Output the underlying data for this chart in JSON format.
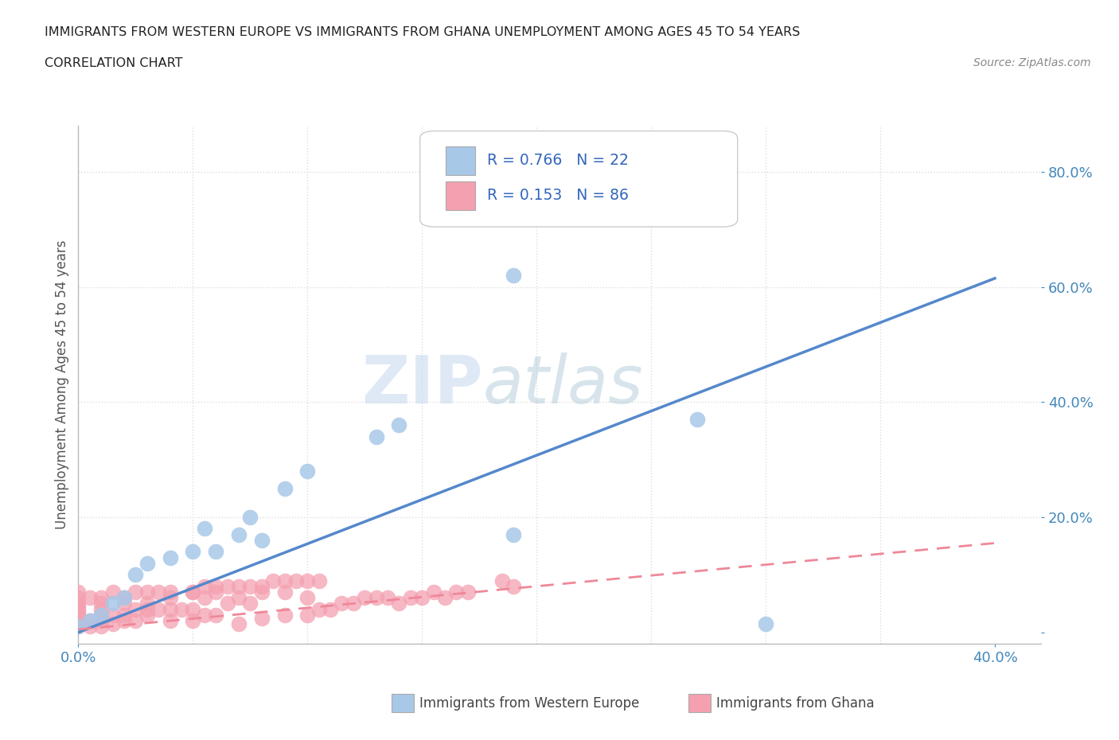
{
  "title_line1": "IMMIGRANTS FROM WESTERN EUROPE VS IMMIGRANTS FROM GHANA UNEMPLOYMENT AMONG AGES 45 TO 54 YEARS",
  "title_line2": "CORRELATION CHART",
  "source_text": "Source: ZipAtlas.com",
  "ylabel": "Unemployment Among Ages 45 to 54 years",
  "xlim": [
    0.0,
    0.42
  ],
  "ylim": [
    -0.02,
    0.88
  ],
  "watermark_zip": "ZIP",
  "watermark_atlas": "atlas",
  "legend_r1": "R = 0.766   N = 22",
  "legend_r2": "R = 0.153   N = 86",
  "color_blue": "#A8C8E8",
  "color_pink": "#F4A0B0",
  "color_blue_line": "#5588CC",
  "color_pink_line": "#EE8899",
  "blue_scatter_x": [
    0.0,
    0.005,
    0.01,
    0.015,
    0.02,
    0.025,
    0.03,
    0.04,
    0.05,
    0.055,
    0.06,
    0.07,
    0.075,
    0.08,
    0.09,
    0.1,
    0.13,
    0.14,
    0.19,
    0.27,
    0.3,
    0.19
  ],
  "blue_scatter_y": [
    0.01,
    0.02,
    0.03,
    0.05,
    0.06,
    0.1,
    0.12,
    0.13,
    0.14,
    0.18,
    0.14,
    0.17,
    0.2,
    0.16,
    0.25,
    0.28,
    0.34,
    0.36,
    0.62,
    0.37,
    0.015,
    0.17
  ],
  "pink_scatter_x": [
    0.0,
    0.0,
    0.0,
    0.0,
    0.0,
    0.0,
    0.0,
    0.0,
    0.0,
    0.005,
    0.005,
    0.01,
    0.01,
    0.01,
    0.01,
    0.01,
    0.015,
    0.015,
    0.02,
    0.02,
    0.02,
    0.025,
    0.025,
    0.03,
    0.03,
    0.03,
    0.035,
    0.04,
    0.04,
    0.04,
    0.045,
    0.05,
    0.05,
    0.05,
    0.055,
    0.055,
    0.06,
    0.06,
    0.065,
    0.07,
    0.07,
    0.075,
    0.08,
    0.08,
    0.09,
    0.09,
    0.1,
    0.1,
    0.105,
    0.11,
    0.115,
    0.12,
    0.125,
    0.13,
    0.135,
    0.14,
    0.145,
    0.15,
    0.155,
    0.16,
    0.165,
    0.17,
    0.0,
    0.0,
    0.005,
    0.01,
    0.015,
    0.02,
    0.025,
    0.03,
    0.035,
    0.04,
    0.05,
    0.055,
    0.06,
    0.065,
    0.07,
    0.075,
    0.08,
    0.085,
    0.09,
    0.095,
    0.1,
    0.105,
    0.19,
    0.185
  ],
  "pink_scatter_y": [
    0.01,
    0.015,
    0.02,
    0.025,
    0.03,
    0.035,
    0.04,
    0.045,
    0.05,
    0.01,
    0.02,
    0.01,
    0.02,
    0.03,
    0.04,
    0.05,
    0.015,
    0.03,
    0.02,
    0.03,
    0.05,
    0.02,
    0.04,
    0.03,
    0.04,
    0.05,
    0.04,
    0.02,
    0.04,
    0.06,
    0.04,
    0.02,
    0.04,
    0.07,
    0.03,
    0.06,
    0.03,
    0.07,
    0.05,
    0.015,
    0.06,
    0.05,
    0.025,
    0.07,
    0.03,
    0.07,
    0.03,
    0.06,
    0.04,
    0.04,
    0.05,
    0.05,
    0.06,
    0.06,
    0.06,
    0.05,
    0.06,
    0.06,
    0.07,
    0.06,
    0.07,
    0.07,
    0.06,
    0.07,
    0.06,
    0.06,
    0.07,
    0.06,
    0.07,
    0.07,
    0.07,
    0.07,
    0.07,
    0.08,
    0.08,
    0.08,
    0.08,
    0.08,
    0.08,
    0.09,
    0.09,
    0.09,
    0.09,
    0.09,
    0.08,
    0.09
  ],
  "blue_line_x": [
    0.0,
    0.4
  ],
  "blue_line_y": [
    0.0,
    0.615
  ],
  "pink_line_x": [
    0.0,
    0.4
  ],
  "pink_line_y": [
    0.005,
    0.155
  ],
  "grid_color": "#DDDDDD",
  "grid_style": ":",
  "background_color": "#FFFFFF",
  "y_ticks": [
    0.0,
    0.2,
    0.4,
    0.6,
    0.8
  ],
  "y_tick_labels": [
    "",
    "20.0%",
    "40.0%",
    "60.0%",
    "80.0%"
  ],
  "x_ticks": [
    0.0,
    0.4
  ],
  "x_tick_labels": [
    "0.0%",
    "40.0%"
  ]
}
